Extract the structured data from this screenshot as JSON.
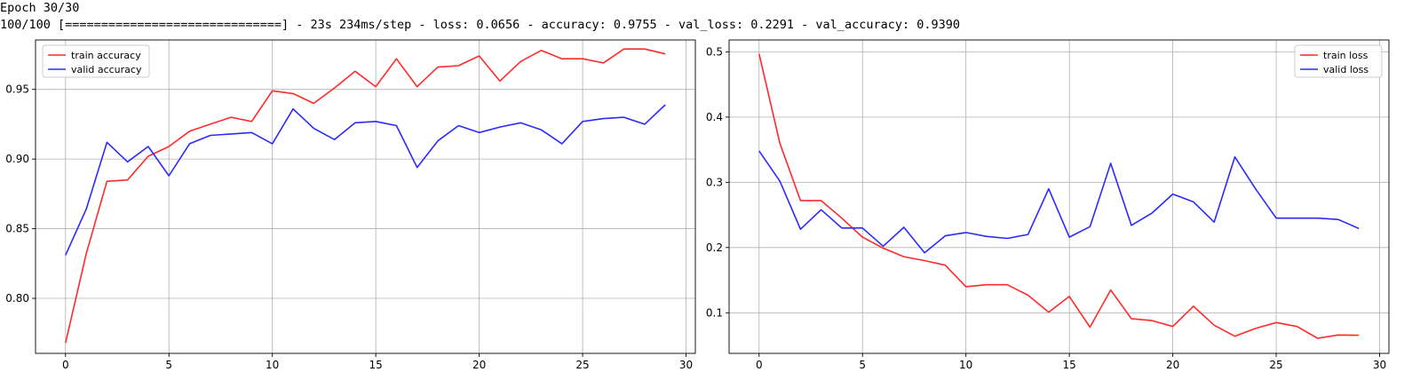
{
  "console": {
    "epoch_line": "Epoch 30/30",
    "progress_line": "100/100 [==============================] - 23s 234ms/step - loss: 0.0656 - accuracy: 0.9755 - val_loss: 0.2291 - val_accuracy: 0.9390"
  },
  "colors": {
    "train": "#ff2a2a",
    "valid": "#2a2aff",
    "grid": "#b0b0b0"
  },
  "chart_data": [
    {
      "type": "line",
      "title": "",
      "xlabel": "",
      "ylabel": "",
      "xlim": [
        -1.45,
        30.45
      ],
      "ylim": [
        0.7605,
        0.9855
      ],
      "xticks": [
        0,
        5,
        10,
        15,
        20,
        25,
        30
      ],
      "yticks": [
        0.8,
        0.85,
        0.9,
        0.95
      ],
      "ytick_format": 2,
      "grid": true,
      "legend_position": "top-left",
      "x": [
        0,
        1,
        2,
        3,
        4,
        5,
        6,
        7,
        8,
        9,
        10,
        11,
        12,
        13,
        14,
        15,
        16,
        17,
        18,
        19,
        20,
        21,
        22,
        23,
        24,
        25,
        26,
        27,
        28,
        29
      ],
      "series": [
        {
          "name": "train accuracy",
          "values": [
            0.768,
            0.832,
            0.884,
            0.885,
            0.902,
            0.909,
            0.92,
            0.925,
            0.93,
            0.927,
            0.949,
            0.947,
            0.94,
            0.951,
            0.963,
            0.952,
            0.972,
            0.952,
            0.966,
            0.967,
            0.974,
            0.956,
            0.97,
            0.978,
            0.972,
            0.972,
            0.969,
            0.979,
            0.979,
            0.9755
          ]
        },
        {
          "name": "valid accuracy",
          "values": [
            0.831,
            0.864,
            0.912,
            0.898,
            0.909,
            0.888,
            0.911,
            0.917,
            0.918,
            0.919,
            0.911,
            0.936,
            0.922,
            0.914,
            0.926,
            0.927,
            0.924,
            0.894,
            0.913,
            0.924,
            0.919,
            0.923,
            0.926,
            0.921,
            0.911,
            0.927,
            0.929,
            0.93,
            0.925,
            0.939
          ]
        }
      ]
    },
    {
      "type": "line",
      "title": "",
      "xlabel": "",
      "ylabel": "",
      "xlim": [
        -1.45,
        30.45
      ],
      "ylim": [
        0.0378,
        0.5182
      ],
      "xticks": [
        0,
        5,
        10,
        15,
        20,
        25,
        30
      ],
      "yticks": [
        0.1,
        0.2,
        0.3,
        0.4,
        0.5
      ],
      "ytick_format": 1,
      "grid": true,
      "legend_position": "top-right",
      "x": [
        0,
        1,
        2,
        3,
        4,
        5,
        6,
        7,
        8,
        9,
        10,
        11,
        12,
        13,
        14,
        15,
        16,
        17,
        18,
        19,
        20,
        21,
        22,
        23,
        24,
        25,
        26,
        27,
        28,
        29
      ],
      "series": [
        {
          "name": "train loss",
          "values": [
            0.497,
            0.36,
            0.272,
            0.272,
            0.245,
            0.216,
            0.199,
            0.186,
            0.18,
            0.173,
            0.14,
            0.143,
            0.143,
            0.127,
            0.101,
            0.125,
            0.078,
            0.135,
            0.091,
            0.088,
            0.079,
            0.11,
            0.081,
            0.064,
            0.076,
            0.085,
            0.079,
            0.061,
            0.066,
            0.0656
          ]
        },
        {
          "name": "valid loss",
          "values": [
            0.348,
            0.302,
            0.228,
            0.258,
            0.23,
            0.23,
            0.202,
            0.231,
            0.192,
            0.218,
            0.223,
            0.217,
            0.214,
            0.22,
            0.29,
            0.216,
            0.232,
            0.329,
            0.234,
            0.253,
            0.282,
            0.27,
            0.239,
            0.339,
            0.29,
            0.245,
            0.245,
            0.245,
            0.243,
            0.2291
          ]
        }
      ]
    }
  ]
}
